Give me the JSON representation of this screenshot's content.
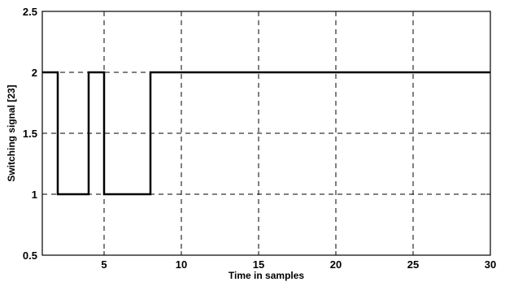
{
  "chart_data": {
    "type": "line",
    "title": "",
    "xlabel": "Time in samples",
    "ylabel": "Switching signal [23]",
    "xlim": [
      1,
      30
    ],
    "ylim": [
      0.5,
      2.5
    ],
    "x_ticks": [
      5,
      10,
      15,
      20,
      25,
      30
    ],
    "y_ticks": [
      0.5,
      1,
      1.5,
      2,
      2.5
    ],
    "x_tick_labels": [
      "5",
      "10",
      "15",
      "20",
      "25",
      "30"
    ],
    "y_tick_labels": [
      "0.5",
      "1",
      "1.5",
      "2",
      "2.5"
    ],
    "grid": true,
    "step": true,
    "series": [
      {
        "x": [
          1,
          2,
          4,
          5,
          8,
          30
        ],
        "values": [
          2,
          1,
          2,
          1,
          2,
          2
        ]
      }
    ],
    "colors": {
      "line": "#000000",
      "grid": "#000000",
      "background": "#ffffff"
    }
  }
}
